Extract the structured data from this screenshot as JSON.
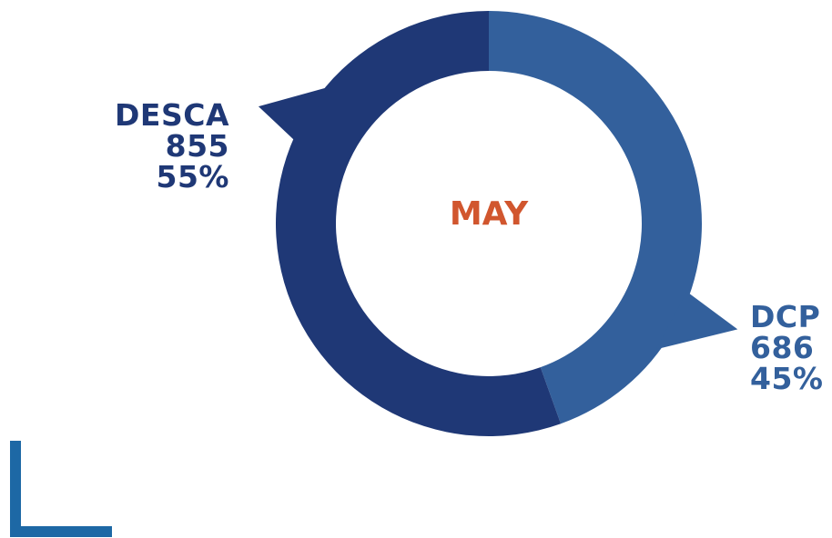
{
  "chart_data": {
    "type": "pie",
    "title": "MAY",
    "slices": [
      {
        "label": "DCP",
        "value": 686,
        "percent": "45%",
        "color": "#33609c"
      },
      {
        "label": "DESCA",
        "value": 855,
        "percent": "55%",
        "color": "#1f3876"
      }
    ]
  },
  "colors": {
    "title": "#d1562e",
    "accent_mark": "#1d68a5"
  }
}
